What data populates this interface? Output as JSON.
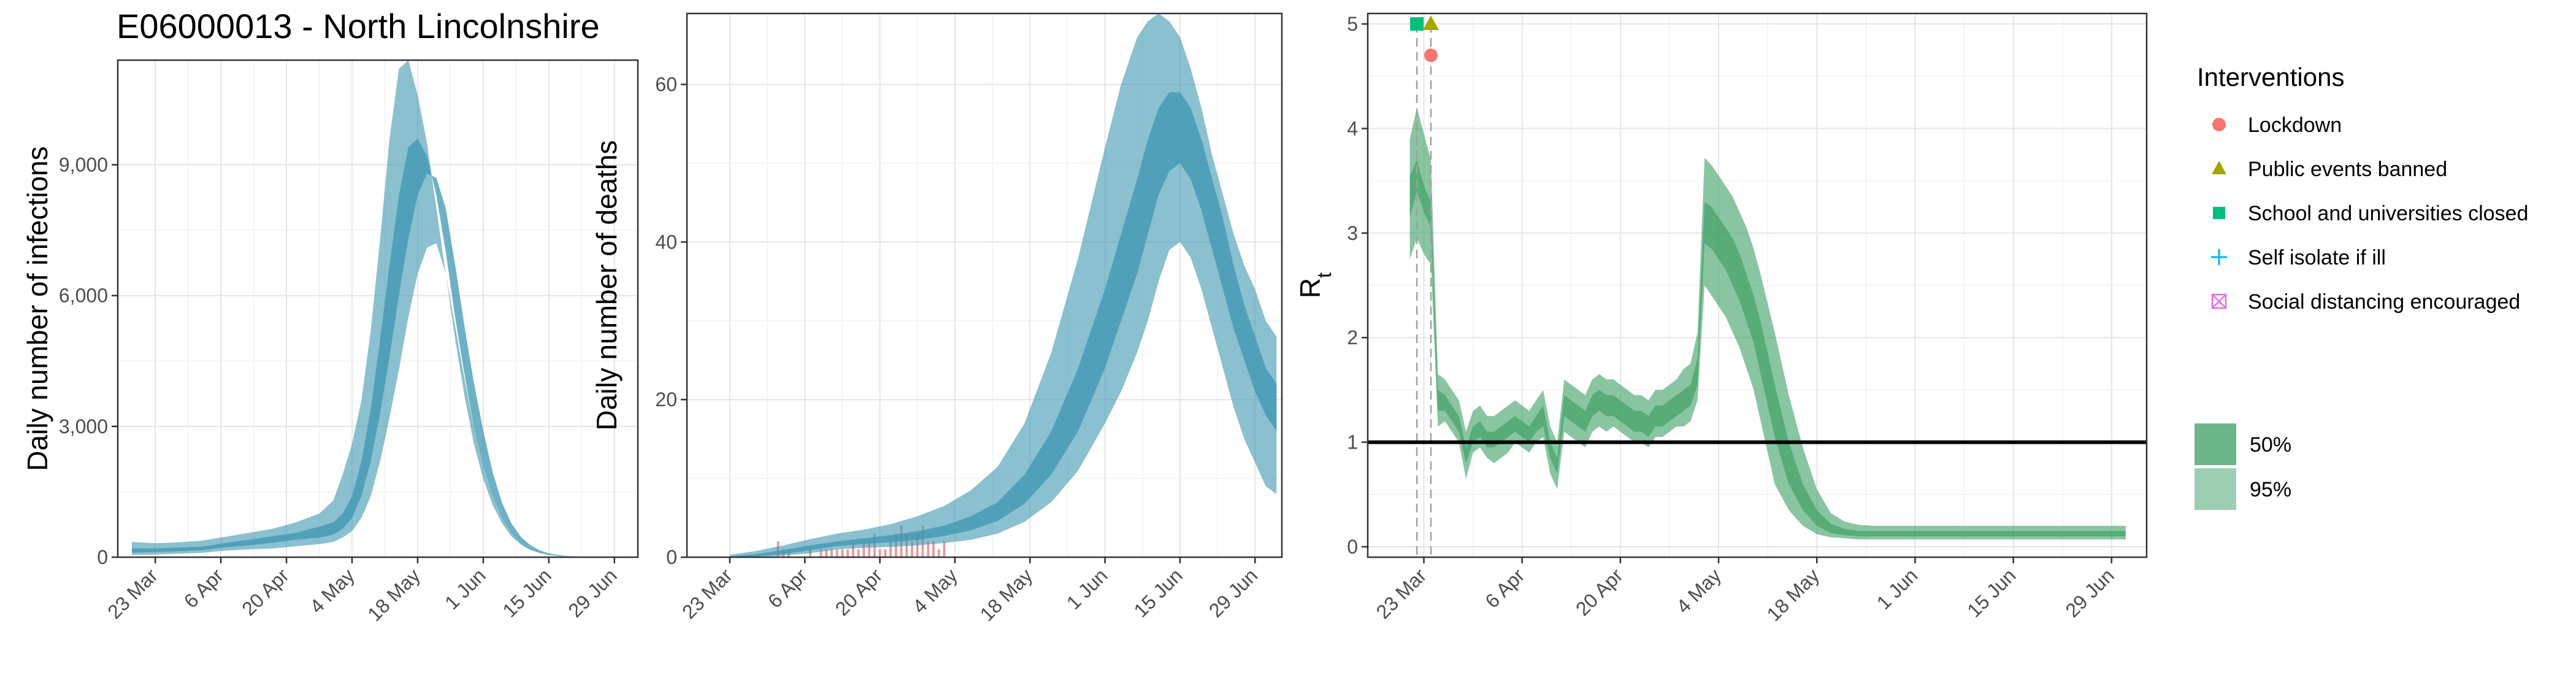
{
  "title": "E06000013 - North Lincolnshire",
  "colors": {
    "blue_band": "#3e96b1",
    "green_band": "#3c9e63",
    "observed_bars": "#d98e8e",
    "lockdown": "#f8766d",
    "public_events": "#a3a500",
    "school": "#00bf7d",
    "self_isolate": "#00b0f6",
    "social_distancing": "#e76bf3"
  },
  "chart_data": [
    {
      "type": "area",
      "ylabel": "Daily number of infections",
      "xlabel": "",
      "ylim": [
        0,
        11400
      ],
      "yticks": [
        0,
        3000,
        6000,
        9000
      ],
      "ytick_labels": [
        "0",
        "3,000",
        "6,000",
        "9,000"
      ],
      "xlim": [
        -8,
        103
      ],
      "xticks": [
        0,
        14,
        28,
        42,
        56,
        70,
        84,
        98
      ],
      "xtick_labels": [
        "23 Mar",
        "6 Apr",
        "20 Apr",
        "4 May",
        "18 May",
        "1 Jun",
        "15 Jun",
        "29 Jun"
      ],
      "x": [
        -5,
        0,
        5,
        10,
        15,
        20,
        25,
        30,
        35,
        38,
        40,
        42,
        44,
        46,
        48,
        50,
        52,
        54,
        56,
        58,
        60,
        62,
        64,
        66,
        68,
        70,
        72,
        74,
        76,
        78,
        80,
        82,
        84,
        86,
        88,
        90,
        92,
        94,
        96,
        98,
        100
      ],
      "band95_low": [
        50,
        60,
        80,
        100,
        150,
        180,
        200,
        250,
        300,
        350,
        450,
        600,
        900,
        1400,
        2200,
        3200,
        4300,
        5500,
        6500,
        7100,
        7200,
        6500,
        5300,
        4100,
        3000,
        2100,
        1400,
        900,
        550,
        330,
        190,
        100,
        60,
        30,
        15,
        8,
        4,
        2,
        1,
        0,
        0
      ],
      "band50_low": [
        100,
        120,
        140,
        160,
        230,
        270,
        330,
        400,
        450,
        520,
        650,
        900,
        1400,
        2200,
        3300,
        4600,
        6000,
        7300,
        8300,
        8800,
        8700,
        8000,
        6700,
        5300,
        4000,
        2900,
        1950,
        1250,
        780,
        470,
        280,
        160,
        90,
        50,
        25,
        12,
        6,
        3,
        1,
        0,
        0
      ],
      "band50_high": [
        200,
        200,
        220,
        240,
        330,
        400,
        480,
        560,
        700,
        800,
        1000,
        1400,
        2200,
        3400,
        5000,
        6700,
        8300,
        9400,
        9600,
        9200,
        8300,
        7000,
        5500,
        4200,
        3000,
        2100,
        1400,
        900,
        550,
        320,
        180,
        100,
        55,
        30,
        15,
        8,
        4,
        2,
        1,
        0,
        0
      ],
      "band95_high": [
        350,
        320,
        340,
        380,
        470,
        560,
        650,
        800,
        1000,
        1300,
        1900,
        2600,
        3600,
        5200,
        7300,
        9600,
        11200,
        11400,
        10600,
        9500,
        8000,
        6500,
        5000,
        3700,
        2600,
        1800,
        1200,
        780,
        480,
        290,
        170,
        95,
        50,
        25,
        12,
        6,
        3,
        1,
        0,
        0,
        0
      ]
    },
    {
      "type": "area",
      "ylabel": "Daily number of deaths",
      "xlabel": "",
      "ylim": [
        0,
        69
      ],
      "yticks": [
        0,
        20,
        40,
        60
      ],
      "ytick_labels": [
        "0",
        "20",
        "40",
        "60"
      ],
      "xlim": [
        -8,
        103
      ],
      "xticks": [
        0,
        14,
        28,
        42,
        56,
        70,
        84,
        98
      ],
      "xtick_labels": [
        "23 Mar",
        "6 Apr",
        "20 Apr",
        "4 May",
        "18 May",
        "1 Jun",
        "15 Jun",
        "29 Jun"
      ],
      "x": [
        0,
        5,
        10,
        15,
        20,
        25,
        30,
        35,
        40,
        45,
        50,
        55,
        60,
        65,
        70,
        73,
        76,
        78,
        80,
        82,
        84,
        86,
        88,
        90,
        92,
        94,
        96,
        98,
        100,
        102
      ],
      "band95_low": [
        0,
        0,
        0.2,
        0.5,
        1,
        1.2,
        1.3,
        1.5,
        1.8,
        2.2,
        3,
        4.5,
        7,
        11,
        17,
        21,
        26,
        30,
        35,
        39,
        40,
        38,
        34,
        29,
        24,
        19,
        15,
        12,
        9,
        8
      ],
      "band50_low": [
        0,
        0.1,
        0.4,
        0.9,
        1.4,
        1.7,
        1.9,
        2.2,
        2.7,
        3.4,
        4.6,
        6.8,
        10.5,
        16,
        24,
        30,
        36,
        41,
        46,
        49,
        50,
        48,
        44,
        39,
        34,
        29,
        25,
        21,
        18,
        16
      ],
      "band50_high": [
        0.1,
        0.4,
        0.9,
        1.5,
        2,
        2.4,
        2.8,
        3.3,
        4,
        5.2,
        7,
        10.5,
        16,
        24,
        34,
        41,
        48,
        53,
        57,
        59,
        59,
        57,
        53,
        48,
        43,
        37,
        32,
        28,
        24,
        22
      ],
      "band95_high": [
        0.3,
        0.8,
        1.5,
        2.3,
        3,
        3.5,
        4.2,
        5.2,
        6.5,
        8.5,
        11.5,
        17,
        26,
        38,
        52,
        60,
        66,
        68,
        69,
        68,
        66,
        62,
        57,
        51,
        46,
        41,
        37,
        34,
        30,
        28
      ],
      "observed_x": [
        9,
        10,
        11,
        15,
        17,
        18,
        19,
        20,
        21,
        22,
        23,
        24,
        25,
        26,
        27,
        28,
        29,
        30,
        31,
        32,
        33,
        34,
        35,
        36,
        37,
        38,
        39,
        40
      ],
      "observed_y": [
        2,
        1,
        1,
        1,
        1,
        1,
        1,
        1,
        1,
        1,
        2,
        1,
        2,
        2,
        3,
        1,
        1,
        2,
        3,
        4,
        3,
        2,
        3,
        4,
        2,
        2,
        1,
        2
      ]
    },
    {
      "type": "line",
      "ylabel": "R",
      "ylabel_sub": "t",
      "xlabel": "",
      "ylim": [
        -0.1,
        5.1
      ],
      "yticks": [
        0,
        1,
        2,
        3,
        4,
        5
      ],
      "ytick_labels": [
        "0",
        "1",
        "2",
        "3",
        "4",
        "5"
      ],
      "xlim": [
        -8,
        103
      ],
      "xticks": [
        0,
        14,
        28,
        42,
        56,
        70,
        84,
        98
      ],
      "xtick_labels": [
        "23 Mar",
        "6 Apr",
        "20 Apr",
        "4 May",
        "18 May",
        "1 Jun",
        "15 Jun",
        "29 Jun"
      ],
      "reference_line": 1,
      "intervention_dates": [
        -1,
        1
      ],
      "x": [
        -2,
        -1,
        0,
        1,
        2,
        3,
        4,
        5,
        6,
        7,
        8,
        9,
        10,
        11,
        12,
        13,
        14,
        15,
        16,
        17,
        18,
        19,
        20,
        21,
        22,
        23,
        24,
        25,
        26,
        27,
        28,
        29,
        30,
        31,
        32,
        33,
        34,
        35,
        36,
        37,
        38,
        39,
        40,
        41,
        42,
        43,
        44,
        45,
        46,
        47,
        48,
        50,
        52,
        54,
        56,
        58,
        60,
        62,
        64,
        66,
        68,
        70,
        72,
        74,
        76,
        78,
        80,
        82,
        84,
        86,
        88,
        90,
        92,
        94,
        96,
        98,
        100
      ],
      "band95_low": [
        2.75,
        2.95,
        2.8,
        2.7,
        1.15,
        1.2,
        1.1,
        1.0,
        0.65,
        0.9,
        0.95,
        0.85,
        0.8,
        0.85,
        0.9,
        1.0,
        0.95,
        0.9,
        1.0,
        1.05,
        0.7,
        0.55,
        1.1,
        1.05,
        1.0,
        0.95,
        1.1,
        1.15,
        1.1,
        1.15,
        1.1,
        1.05,
        1.0,
        1.0,
        0.95,
        1.05,
        1.05,
        1.1,
        1.15,
        1.15,
        1.2,
        1.4,
        2.5,
        2.4,
        2.3,
        2.2,
        2.05,
        1.9,
        1.7,
        1.5,
        1.2,
        0.6,
        0.35,
        0.2,
        0.12,
        0.09,
        0.08,
        0.07,
        0.07,
        0.07,
        0.07,
        0.07,
        0.07,
        0.07,
        0.07,
        0.07,
        0.07,
        0.07,
        0.07,
        0.07,
        0.07,
        0.07,
        0.07,
        0.07,
        0.07,
        0.07,
        0.07
      ],
      "band50_low": [
        3.15,
        3.4,
        3.2,
        3.05,
        1.3,
        1.3,
        1.2,
        1.1,
        0.8,
        1.0,
        1.05,
        0.95,
        0.95,
        1.0,
        1.05,
        1.1,
        1.05,
        1.0,
        1.1,
        1.15,
        0.85,
        0.7,
        1.25,
        1.2,
        1.15,
        1.1,
        1.25,
        1.3,
        1.25,
        1.25,
        1.2,
        1.15,
        1.1,
        1.1,
        1.05,
        1.15,
        1.15,
        1.2,
        1.25,
        1.3,
        1.35,
        1.55,
        2.9,
        2.85,
        2.75,
        2.65,
        2.5,
        2.35,
        2.15,
        1.95,
        1.65,
        1.05,
        0.6,
        0.35,
        0.2,
        0.13,
        0.11,
        0.1,
        0.1,
        0.1,
        0.1,
        0.1,
        0.1,
        0.1,
        0.1,
        0.1,
        0.1,
        0.1,
        0.1,
        0.1,
        0.1,
        0.1,
        0.1,
        0.1,
        0.1,
        0.1,
        0.1
      ],
      "band50_high": [
        3.55,
        3.7,
        3.45,
        3.3,
        1.5,
        1.45,
        1.35,
        1.25,
        0.95,
        1.15,
        1.2,
        1.1,
        1.1,
        1.15,
        1.2,
        1.25,
        1.2,
        1.15,
        1.25,
        1.35,
        1.0,
        0.85,
        1.45,
        1.4,
        1.35,
        1.3,
        1.45,
        1.5,
        1.45,
        1.45,
        1.4,
        1.35,
        1.3,
        1.3,
        1.25,
        1.35,
        1.35,
        1.4,
        1.45,
        1.5,
        1.55,
        1.8,
        3.3,
        3.25,
        3.15,
        3.05,
        2.95,
        2.8,
        2.6,
        2.4,
        2.15,
        1.55,
        1.0,
        0.6,
        0.35,
        0.22,
        0.17,
        0.15,
        0.15,
        0.15,
        0.15,
        0.15,
        0.15,
        0.15,
        0.15,
        0.15,
        0.15,
        0.15,
        0.15,
        0.15,
        0.15,
        0.15,
        0.15,
        0.15,
        0.15,
        0.15,
        0.15
      ],
      "band95_high": [
        3.9,
        4.2,
        3.95,
        3.7,
        1.65,
        1.6,
        1.5,
        1.4,
        1.1,
        1.3,
        1.35,
        1.25,
        1.25,
        1.3,
        1.35,
        1.4,
        1.35,
        1.3,
        1.4,
        1.5,
        1.15,
        1.0,
        1.6,
        1.55,
        1.5,
        1.45,
        1.6,
        1.65,
        1.6,
        1.6,
        1.55,
        1.5,
        1.45,
        1.45,
        1.4,
        1.5,
        1.5,
        1.55,
        1.6,
        1.7,
        1.75,
        2.05,
        3.72,
        3.65,
        3.55,
        3.45,
        3.35,
        3.2,
        3.05,
        2.85,
        2.6,
        2.05,
        1.45,
        0.95,
        0.55,
        0.32,
        0.24,
        0.21,
        0.2,
        0.2,
        0.2,
        0.2,
        0.2,
        0.2,
        0.2,
        0.2,
        0.2,
        0.2,
        0.2,
        0.2,
        0.2,
        0.2,
        0.2,
        0.2,
        0.2,
        0.2,
        0.2
      ],
      "intervention_markers": [
        {
          "x": -1,
          "y": 5,
          "shape": "square",
          "color": "#00bf7d"
        },
        {
          "x": 1,
          "y": 5,
          "shape": "triangle",
          "color": "#a3a500"
        },
        {
          "x": 1,
          "y": 4.7,
          "shape": "circle",
          "color": "#f8766d"
        }
      ]
    }
  ],
  "legend": {
    "title": "Interventions",
    "items": [
      {
        "label": "Lockdown",
        "shape": "circle",
        "color": "#f8766d"
      },
      {
        "label": "Public events banned",
        "shape": "triangle",
        "color": "#a3a500"
      },
      {
        "label": "School and universities closed",
        "shape": "square",
        "color": "#00bf7d"
      },
      {
        "label": "Self isolate if ill",
        "shape": "plus",
        "color": "#00b0f6"
      },
      {
        "label": "Social distancing encouraged",
        "shape": "boxx",
        "color": "#e76bf3"
      }
    ],
    "bands": [
      {
        "label": "50%",
        "color": "#3c9e63",
        "opacity": 0.75
      },
      {
        "label": "95%",
        "color": "#3c9e63",
        "opacity": 0.5
      }
    ]
  }
}
